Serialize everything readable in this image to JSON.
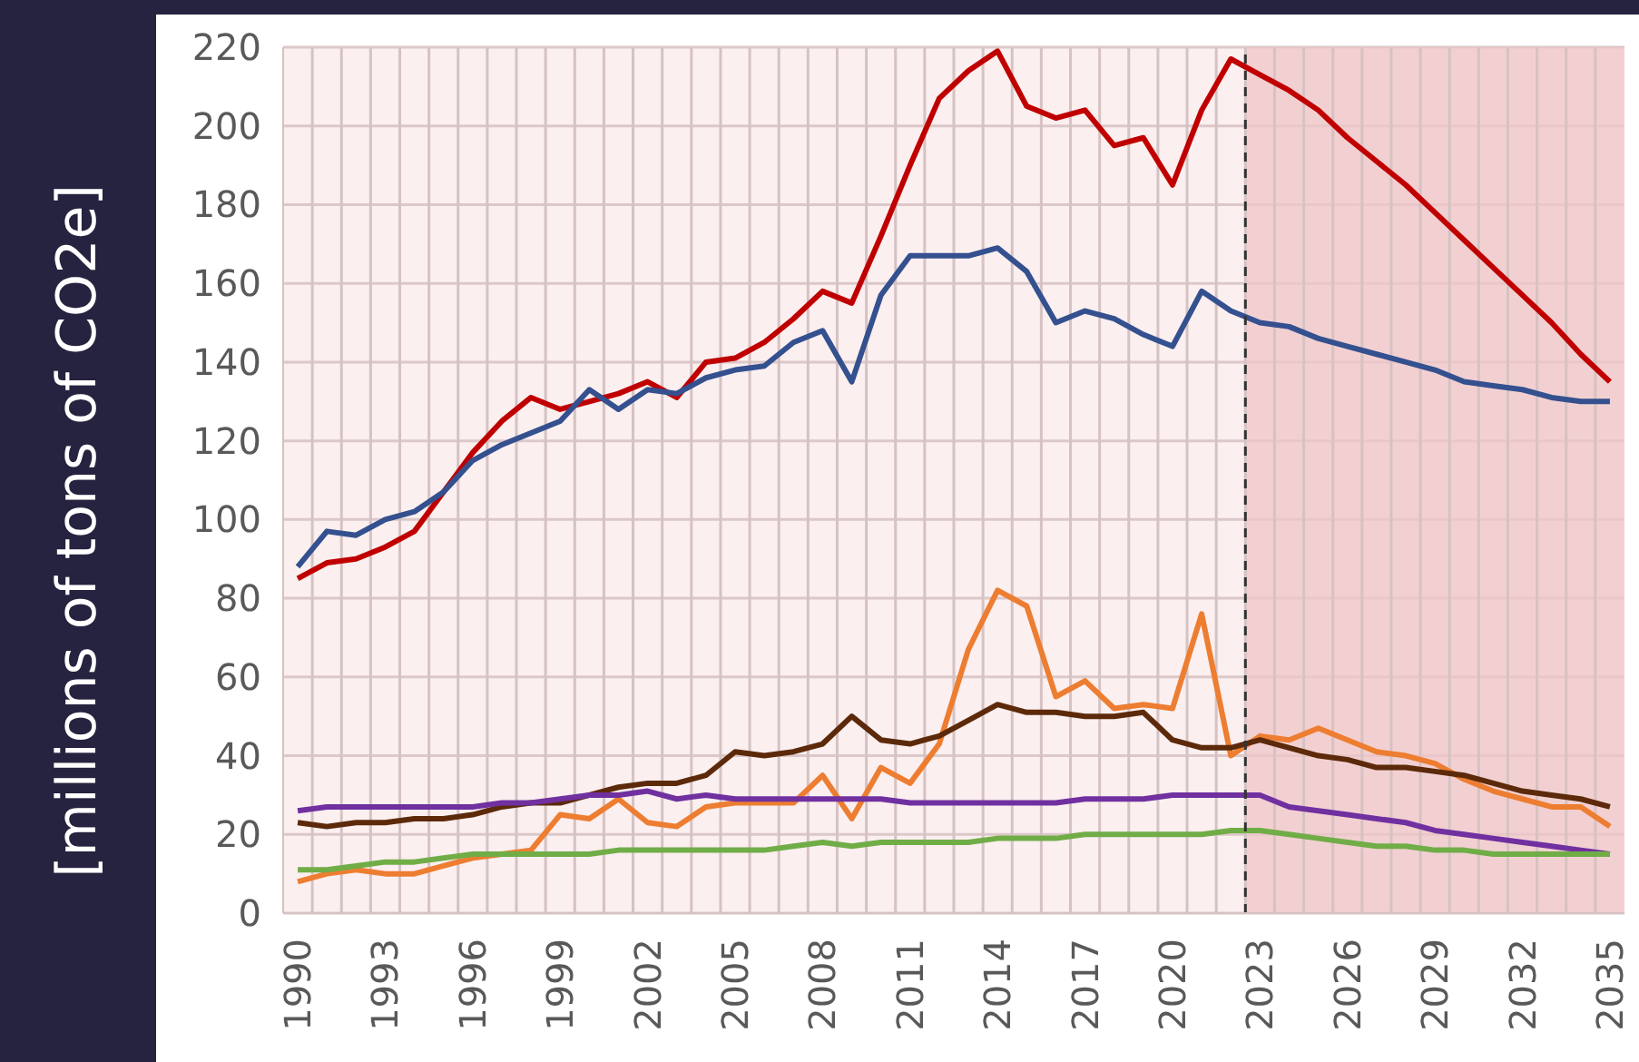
{
  "chart_data": {
    "type": "line",
    "ylabel": "[millions of tons of CO2e]",
    "x": [
      1990,
      1991,
      1992,
      1993,
      1994,
      1995,
      1996,
      1997,
      1998,
      1999,
      2000,
      2001,
      2002,
      2003,
      2004,
      2005,
      2006,
      2007,
      2008,
      2009,
      2010,
      2011,
      2012,
      2013,
      2014,
      2015,
      2016,
      2017,
      2018,
      2019,
      2020,
      2021,
      2022,
      2023,
      2024,
      2025,
      2026,
      2027,
      2028,
      2029,
      2030,
      2031,
      2032,
      2033,
      2034,
      2035
    ],
    "series": [
      {
        "color": "#c00000",
        "values": [
          85,
          89,
          90,
          93,
          97,
          107,
          117,
          125,
          131,
          128,
          130,
          132,
          135,
          131,
          140,
          141,
          145,
          151,
          158,
          155,
          172,
          190,
          207,
          214,
          219,
          205,
          202,
          204,
          195,
          197,
          185,
          204,
          217,
          213,
          209,
          204,
          197,
          191,
          185,
          178,
          171,
          164,
          157,
          150,
          142,
          135
        ]
      },
      {
        "color": "#34508f",
        "values": [
          88,
          97,
          96,
          100,
          102,
          107,
          115,
          119,
          122,
          125,
          133,
          128,
          133,
          132,
          136,
          138,
          139,
          145,
          148,
          135,
          157,
          167,
          167,
          167,
          169,
          163,
          150,
          153,
          151,
          147,
          144,
          158,
          153,
          150,
          149,
          146,
          144,
          142,
          140,
          138,
          135,
          134,
          133,
          131,
          130,
          130
        ]
      },
      {
        "color": "#ed7d31",
        "values": [
          8,
          10,
          11,
          10,
          10,
          12,
          14,
          15,
          16,
          25,
          24,
          29,
          23,
          22,
          27,
          28,
          28,
          28,
          35,
          24,
          37,
          33,
          43,
          67,
          82,
          78,
          55,
          59,
          52,
          53,
          52,
          76,
          40,
          45,
          44,
          47,
          44,
          41,
          40,
          38,
          34,
          31,
          29,
          27,
          27,
          22
        ]
      },
      {
        "color": "#5c2a0a",
        "values": [
          23,
          22,
          23,
          23,
          24,
          24,
          25,
          27,
          28,
          28,
          30,
          32,
          33,
          33,
          35,
          41,
          40,
          41,
          43,
          50,
          44,
          43,
          45,
          49,
          53,
          51,
          51,
          50,
          50,
          51,
          44,
          42,
          42,
          44,
          42,
          40,
          39,
          37,
          37,
          36,
          35,
          33,
          31,
          30,
          29,
          27
        ]
      },
      {
        "color": "#7030a0",
        "values": [
          26,
          27,
          27,
          27,
          27,
          27,
          27,
          28,
          28,
          29,
          30,
          30,
          31,
          29,
          30,
          29,
          29,
          29,
          29,
          29,
          29,
          28,
          28,
          28,
          28,
          28,
          28,
          29,
          29,
          29,
          30,
          30,
          30,
          30,
          27,
          26,
          25,
          24,
          23,
          21,
          20,
          19,
          18,
          17,
          16,
          15
        ]
      },
      {
        "color": "#70ad47",
        "values": [
          11,
          11,
          12,
          13,
          13,
          14,
          15,
          15,
          15,
          15,
          15,
          16,
          16,
          16,
          16,
          16,
          16,
          17,
          18,
          17,
          18,
          18,
          18,
          18,
          19,
          19,
          19,
          20,
          20,
          20,
          20,
          20,
          21,
          21,
          20,
          19,
          18,
          17,
          17,
          16,
          16,
          15,
          15,
          15,
          15,
          15
        ]
      }
    ],
    "xlim": [
      1989.5,
      2035.5
    ],
    "xticks": [
      1990,
      {
        "value": 1990.5,
        "label": null
      },
      {
        "value": 1991.5,
        "label": null
      },
      {
        "value": 1992.5,
        "label": null
      },
      1993,
      {
        "value": 1993.5,
        "label": null
      },
      {
        "value": 1994.5,
        "label": null
      },
      {
        "value": 1995.5,
        "label": null
      },
      1996,
      {
        "value": 1996.5,
        "label": null
      },
      {
        "value": 1997.5,
        "label": null
      },
      {
        "value": 1998.5,
        "label": null
      },
      1999,
      {
        "value": 1999.5,
        "label": null
      },
      {
        "value": 2000.5,
        "label": null
      },
      {
        "value": 2001.5,
        "label": null
      },
      2002,
      {
        "value": 2002.5,
        "label": null
      },
      {
        "value": 2003.5,
        "label": null
      },
      {
        "value": 2004.5,
        "label": null
      },
      2005,
      {
        "value": 2005.5,
        "label": null
      },
      {
        "value": 2006.5,
        "label": null
      },
      {
        "value": 2007.5,
        "label": null
      },
      2008,
      {
        "value": 2008.5,
        "label": null
      },
      {
        "value": 2009.5,
        "label": null
      },
      {
        "value": 2010.5,
        "label": null
      },
      2011,
      {
        "value": 2011.5,
        "label": null
      },
      {
        "value": 2012.5,
        "label": null
      },
      {
        "value": 2013.5,
        "label": null
      },
      2014,
      {
        "value": 2014.5,
        "label": null
      },
      {
        "value": 2015.5,
        "label": null
      },
      {
        "value": 2016.5,
        "label": null
      },
      2017,
      {
        "value": 2017.5,
        "label": null
      },
      {
        "value": 2018.5,
        "label": null
      },
      {
        "value": 2019.5,
        "label": null
      },
      2020,
      {
        "value": 2020.5,
        "label": null
      },
      {
        "value": 2021.5,
        "label": null
      },
      {
        "value": 2022.5,
        "label": null
      },
      2023,
      {
        "value": 2023.5,
        "label": null
      },
      {
        "value": 2024.5,
        "label": null
      },
      {
        "value": 2025.5,
        "label": null
      },
      2026,
      {
        "value": 2026.5,
        "label": null
      },
      {
        "value": 2027.5,
        "label": null
      },
      {
        "value": 2028.5,
        "label": null
      },
      2029,
      {
        "value": 2029.5,
        "label": null
      },
      {
        "value": 2030.5,
        "label": null
      },
      {
        "value": 2031.5,
        "label": null
      },
      2032,
      {
        "value": 2032.5,
        "label": null
      },
      {
        "value": 2033.5,
        "label": null
      },
      {
        "value": 2034.5,
        "label": null
      },
      2035
    ],
    "ylim": [
      0,
      220
    ],
    "yticks": [
      0,
      20,
      40,
      60,
      80,
      100,
      120,
      140,
      160,
      180,
      200,
      220
    ],
    "ref_lines": [
      {
        "axis": "x",
        "value": 2022.5,
        "color": "#333333",
        "line_style": "dashed"
      }
    ],
    "bands": [
      {
        "axis": "x",
        "from": 2022.5,
        "to": 2035.5,
        "color": "#efc5c7"
      }
    ],
    "grid": true,
    "legend": false,
    "marker": "none",
    "line_style": "solid"
  }
}
